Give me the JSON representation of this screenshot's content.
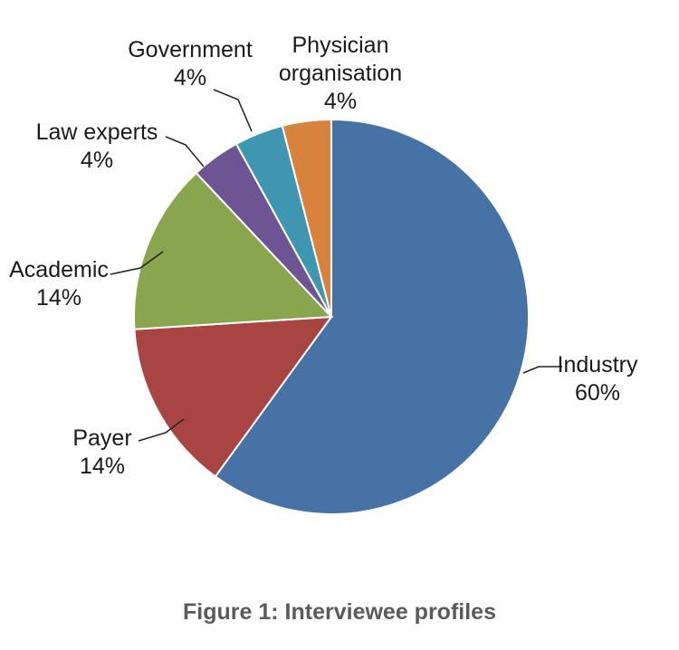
{
  "chart_data": {
    "type": "pie",
    "caption": "Figure 1: Interviewee profiles",
    "slices": [
      {
        "label": "Industry",
        "label_lines": [
          "Industry"
        ],
        "percent_label": "60%",
        "value": 60,
        "color": "#4672a6"
      },
      {
        "label": "Payer",
        "label_lines": [
          "Payer"
        ],
        "percent_label": "14%",
        "value": 14,
        "color": "#a84442"
      },
      {
        "label": "Academic",
        "label_lines": [
          "Academic"
        ],
        "percent_label": "14%",
        "value": 14,
        "color": "#89a54e"
      },
      {
        "label": "Law experts",
        "label_lines": [
          "Law experts"
        ],
        "percent_label": "4%",
        "value": 4,
        "color": "#6d5593"
      },
      {
        "label": "Government",
        "label_lines": [
          "Government"
        ],
        "percent_label": "4%",
        "value": 4,
        "color": "#3f96b0"
      },
      {
        "label": "Physician organisation",
        "label_lines": [
          "Physician",
          "organisation"
        ],
        "percent_label": "4%",
        "value": 4,
        "color": "#d7823d"
      }
    ],
    "start": "12 o'clock",
    "direction": "clockwise",
    "legend": "none"
  }
}
